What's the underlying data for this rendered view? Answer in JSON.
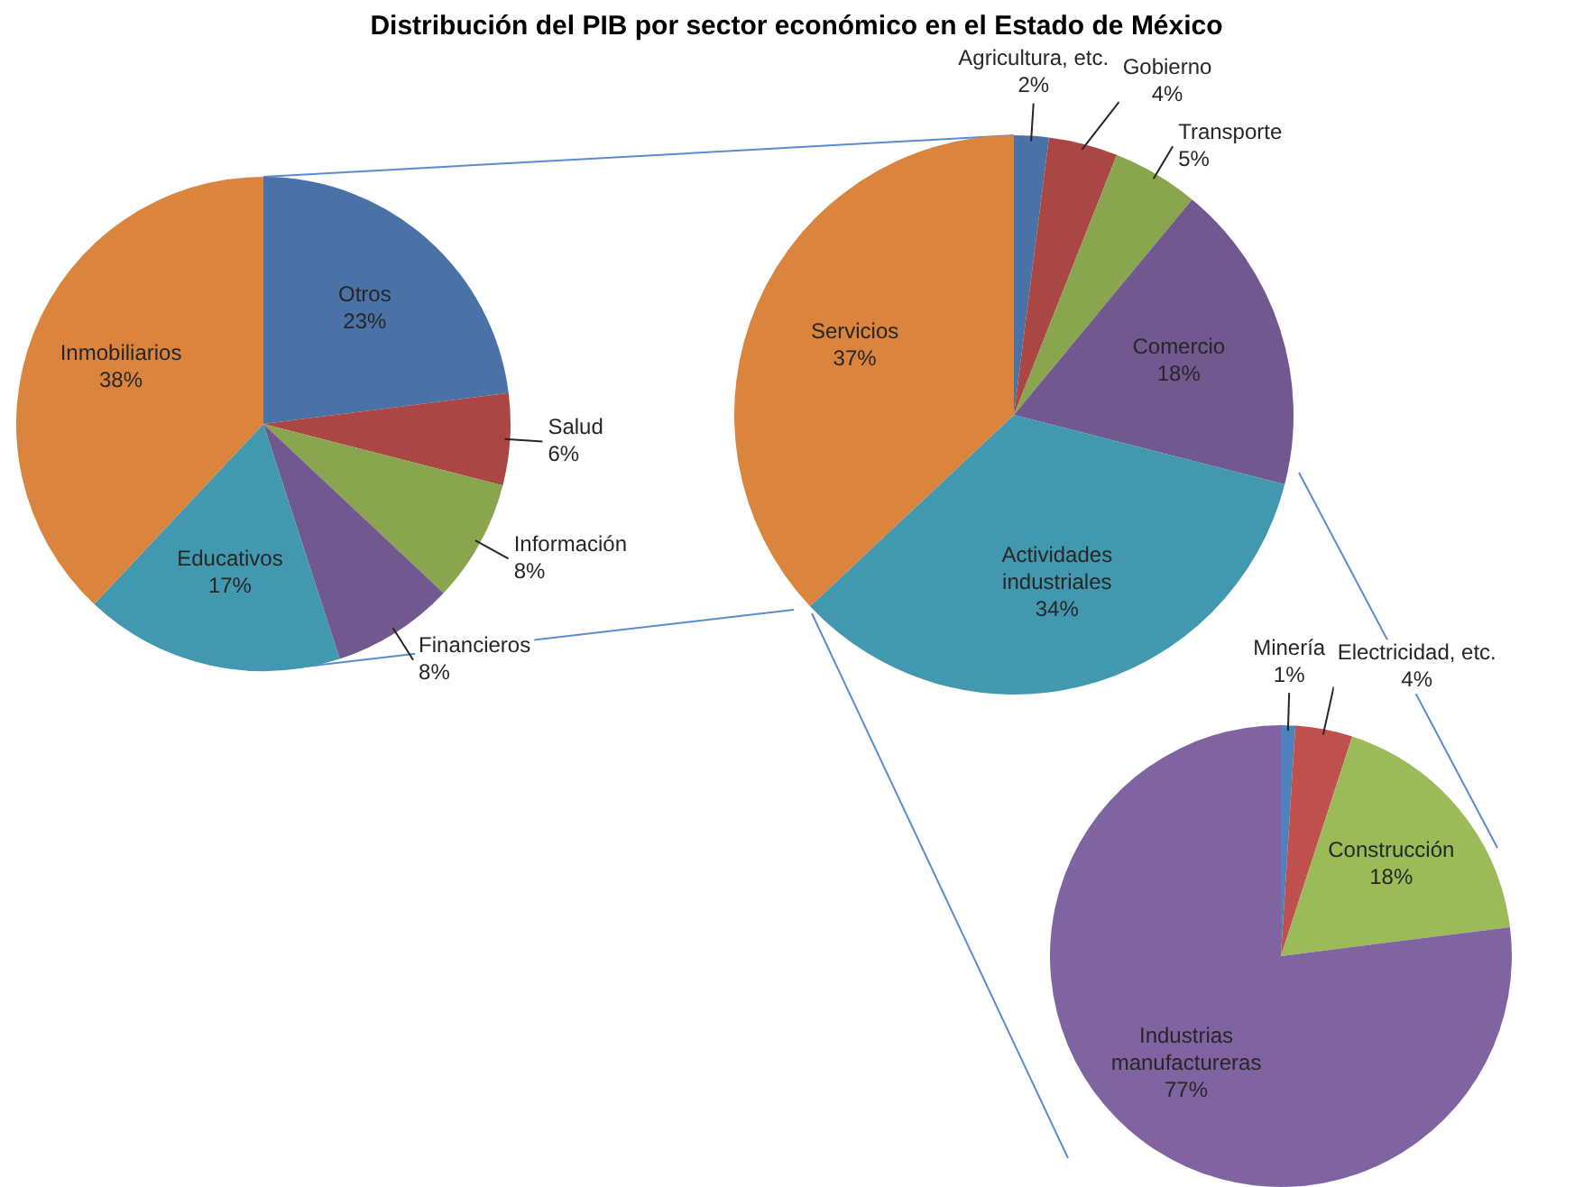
{
  "chart_data": [
    {
      "type": "pie",
      "categories": [
        "Otros",
        "Salud",
        "Información",
        "Financieros",
        "Educativos",
        "Inmobiliarios"
      ],
      "values": [
        23,
        6,
        8,
        8,
        17,
        38
      ],
      "value_labels": [
        "23%",
        "6%",
        "8%",
        "8%",
        "17%",
        "38%"
      ],
      "colors": [
        "#4a72a6",
        "#aa4643",
        "#89a54e",
        "#71588f",
        "#4198af",
        "#db843d"
      ]
    },
    {
      "type": "pie",
      "title": "Distribución del PIB por sector económico en el Estado de México",
      "categories": [
        "Agricultura, etc.",
        "Gobierno",
        "Transporte",
        "Comercio",
        "Actividades industriales",
        "Servicios"
      ],
      "values": [
        2,
        4,
        5,
        18,
        34,
        37
      ],
      "value_labels": [
        "2%",
        "4%",
        "5%",
        "18%",
        "34%",
        "37%"
      ],
      "colors": [
        "#4a72a6",
        "#aa4643",
        "#89a54e",
        "#71588f",
        "#4198af",
        "#db843d"
      ]
    },
    {
      "type": "pie",
      "categories": [
        "Minería",
        "Electricidad, etc.",
        "Construcción",
        "Industrias manufactureras"
      ],
      "values": [
        1,
        4,
        18,
        77
      ],
      "value_labels": [
        "1%",
        "4%",
        "18%",
        "77%"
      ],
      "colors": [
        "#4f81bd",
        "#c0504d",
        "#9bbb59",
        "#8064a2"
      ]
    }
  ]
}
